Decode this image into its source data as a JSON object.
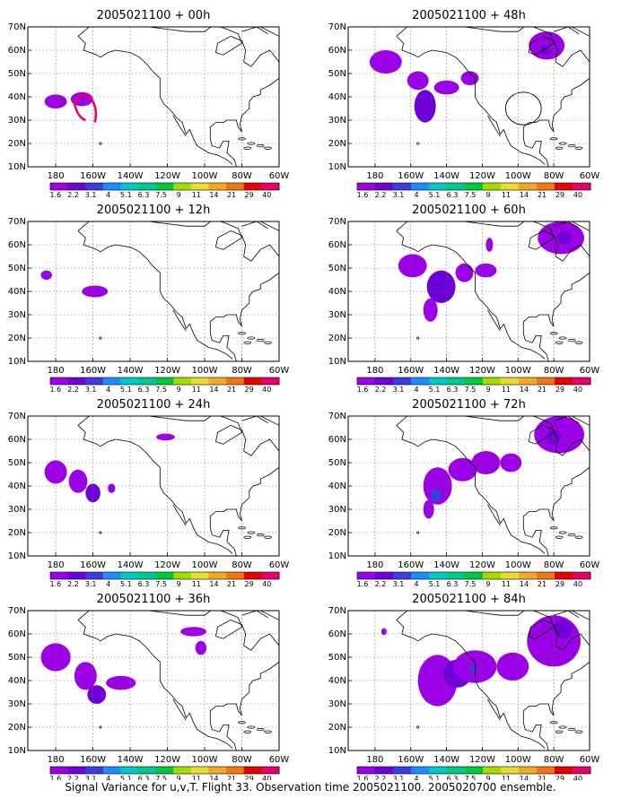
{
  "footer": "Signal Variance for u,v,T. Flight 33. Observation time 2005021100. 2005020700 ensemble.",
  "colorbar": {
    "labels": [
      "1.6",
      "2.2",
      "3.1",
      "4",
      "5.1",
      "6.3",
      "7.5",
      "9",
      "11",
      "14",
      "21",
      "29",
      "40"
    ],
    "colors": [
      "#9b00e6",
      "#6e00d8",
      "#3c3ce0",
      "#1e8cff",
      "#00c8c8",
      "#00c88c",
      "#00c83c",
      "#a0dc00",
      "#e6dc32",
      "#f0aa28",
      "#f07814",
      "#e60000",
      "#e6006e"
    ]
  },
  "axes": {
    "lon_ticks": [
      "180",
      "160W",
      "140W",
      "120W",
      "100W",
      "80W",
      "60W"
    ],
    "lat_ticks": [
      "10N",
      "20N",
      "30N",
      "40N",
      "50N",
      "60N",
      "70N"
    ]
  },
  "chart_data": [
    {
      "type": "heatmap",
      "title": "2005021100 + 00h",
      "contour": true,
      "blobs": [
        {
          "lon": -180,
          "lat": 38,
          "rx": 6,
          "ry": 3,
          "level": "1.6"
        },
        {
          "lon": -166,
          "lat": 39,
          "rx": 6,
          "ry": 3,
          "level": "1.6"
        }
      ]
    },
    {
      "type": "heatmap",
      "title": "2005021100 + 12h",
      "blobs": [
        {
          "lon": -185,
          "lat": 47,
          "rx": 3,
          "ry": 2,
          "level": "1.6"
        },
        {
          "lon": -159,
          "lat": 40,
          "rx": 7,
          "ry": 2.5,
          "level": "1.6"
        }
      ]
    },
    {
      "type": "heatmap",
      "title": "2005021100 + 24h",
      "blobs": [
        {
          "lon": -180,
          "lat": 46,
          "rx": 6,
          "ry": 5,
          "level": "1.6"
        },
        {
          "lon": -168,
          "lat": 42,
          "rx": 5,
          "ry": 5,
          "level": "1.6"
        },
        {
          "lon": -160,
          "lat": 37,
          "rx": 4,
          "ry": 4,
          "level": "2.2"
        },
        {
          "lon": -150,
          "lat": 39,
          "rx": 2,
          "ry": 2,
          "level": "1.6"
        },
        {
          "lon": -121,
          "lat": 61,
          "rx": 5,
          "ry": 1.5,
          "level": "1.6"
        }
      ]
    },
    {
      "type": "heatmap",
      "title": "2005021100 + 36h",
      "blobs": [
        {
          "lon": -180,
          "lat": 50,
          "rx": 8,
          "ry": 6,
          "level": "1.6"
        },
        {
          "lon": -164,
          "lat": 42,
          "rx": 6,
          "ry": 6,
          "level": "1.6"
        },
        {
          "lon": -158,
          "lat": 34,
          "rx": 5,
          "ry": 4,
          "level": "2.2"
        },
        {
          "lon": -145,
          "lat": 39,
          "rx": 8,
          "ry": 3,
          "level": "1.6"
        },
        {
          "lon": -106,
          "lat": 61,
          "rx": 7,
          "ry": 2,
          "level": "1.6"
        },
        {
          "lon": -102,
          "lat": 54,
          "rx": 3,
          "ry": 3,
          "level": "1.6"
        }
      ]
    },
    {
      "type": "heatmap",
      "title": "2005021100 + 48h",
      "contour": true,
      "blobs": [
        {
          "lon": -174,
          "lat": 55,
          "rx": 9,
          "ry": 5,
          "level": "1.6"
        },
        {
          "lon": -156,
          "lat": 47,
          "rx": 6,
          "ry": 4,
          "level": "1.6"
        },
        {
          "lon": -152,
          "lat": 36,
          "rx": 6,
          "ry": 7,
          "level": "2.2"
        },
        {
          "lon": -140,
          "lat": 44,
          "rx": 7,
          "ry": 3,
          "level": "1.6"
        },
        {
          "lon": -127,
          "lat": 48,
          "rx": 5,
          "ry": 3,
          "level": "1.6"
        },
        {
          "lon": -84,
          "lat": 62,
          "rx": 10,
          "ry": 6,
          "level": "1.6"
        },
        {
          "lon": -85,
          "lat": 60,
          "rx": 3,
          "ry": 2,
          "level": "2.2"
        }
      ]
    },
    {
      "type": "heatmap",
      "title": "2005021100 + 60h",
      "blobs": [
        {
          "lon": -159,
          "lat": 51,
          "rx": 8,
          "ry": 5,
          "level": "1.6"
        },
        {
          "lon": -143,
          "lat": 42,
          "rx": 8,
          "ry": 7,
          "level": "2.2"
        },
        {
          "lon": -149,
          "lat": 32,
          "rx": 4,
          "ry": 5,
          "level": "1.6"
        },
        {
          "lon": -130,
          "lat": 48,
          "rx": 5,
          "ry": 4,
          "level": "1.6"
        },
        {
          "lon": -118,
          "lat": 49,
          "rx": 6,
          "ry": 3,
          "level": "1.6"
        },
        {
          "lon": -116,
          "lat": 60,
          "rx": 2,
          "ry": 3,
          "level": "1.6"
        },
        {
          "lon": -76,
          "lat": 63,
          "rx": 13,
          "ry": 7,
          "level": "1.6"
        },
        {
          "lon": -74,
          "lat": 63,
          "rx": 4,
          "ry": 3,
          "level": "2.2"
        }
      ]
    },
    {
      "type": "heatmap",
      "title": "2005021100 + 72h",
      "blobs": [
        {
          "lon": -145,
          "lat": 40,
          "rx": 8,
          "ry": 8,
          "level": "1.6"
        },
        {
          "lon": -146,
          "lat": 36,
          "rx": 3,
          "ry": 3,
          "level": "3.1"
        },
        {
          "lon": -150,
          "lat": 30,
          "rx": 3,
          "ry": 4,
          "level": "1.6"
        },
        {
          "lon": -131,
          "lat": 47,
          "rx": 8,
          "ry": 5,
          "level": "1.6"
        },
        {
          "lon": -118,
          "lat": 50,
          "rx": 8,
          "ry": 5,
          "level": "1.6"
        },
        {
          "lon": -104,
          "lat": 50,
          "rx": 6,
          "ry": 4,
          "level": "1.6"
        },
        {
          "lon": -77,
          "lat": 62,
          "rx": 14,
          "ry": 8,
          "level": "1.6"
        },
        {
          "lon": -80,
          "lat": 61,
          "rx": 4,
          "ry": 3,
          "level": "2.2"
        }
      ]
    },
    {
      "type": "heatmap",
      "title": "2005021100 + 84h",
      "blobs": [
        {
          "lon": -175,
          "lat": 61,
          "rx": 1.5,
          "ry": 1.5,
          "level": "1.6"
        },
        {
          "lon": -145,
          "lat": 40,
          "rx": 11,
          "ry": 11,
          "level": "1.6"
        },
        {
          "lon": -134,
          "lat": 43,
          "rx": 8,
          "ry": 6,
          "level": "2.2"
        },
        {
          "lon": -124,
          "lat": 46,
          "rx": 12,
          "ry": 7,
          "level": "1.6"
        },
        {
          "lon": -125,
          "lat": 45,
          "rx": 2,
          "ry": 2,
          "level": "3.1"
        },
        {
          "lon": -103,
          "lat": 46,
          "rx": 9,
          "ry": 6,
          "level": "1.6"
        },
        {
          "lon": -80,
          "lat": 57,
          "rx": 15,
          "ry": 11,
          "level": "1.6"
        },
        {
          "lon": -75,
          "lat": 62,
          "rx": 5,
          "ry": 4,
          "level": "2.2"
        }
      ]
    }
  ]
}
